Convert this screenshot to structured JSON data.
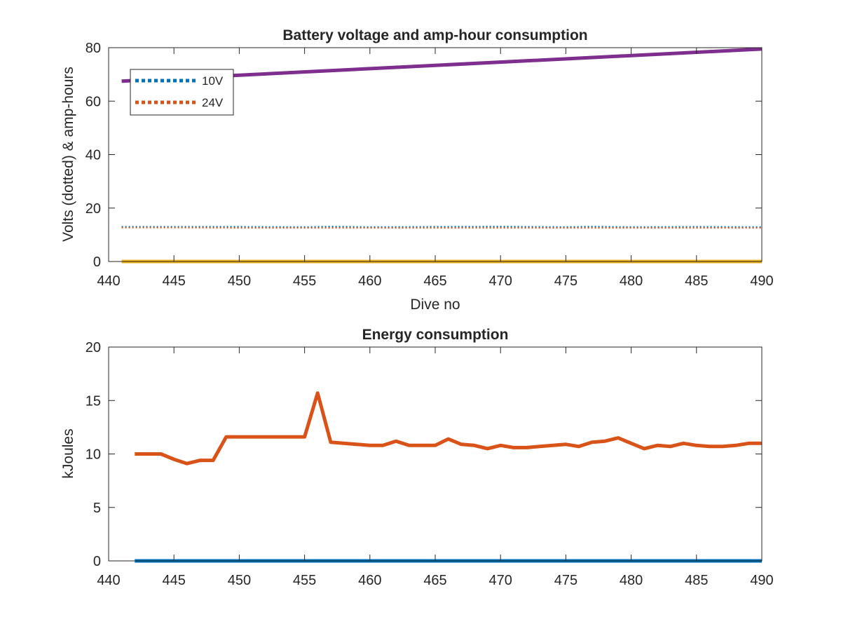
{
  "chart_data": [
    {
      "type": "line",
      "title": "Battery voltage and amp-hour consumption",
      "xlabel": "Dive no",
      "ylabel": "Volts (dotted) & amp-hours",
      "xlim": [
        440,
        490
      ],
      "ylim": [
        0,
        80
      ],
      "xticks": [
        440,
        445,
        450,
        455,
        460,
        465,
        470,
        475,
        480,
        485,
        490
      ],
      "yticks": [
        0,
        20,
        40,
        60,
        80
      ],
      "grid": false,
      "legend_position": "top-left",
      "series": [
        {
          "name": "10V",
          "style": "dotted",
          "color": "#0072BD",
          "x": [
            441,
            445,
            450,
            455,
            457,
            460,
            465,
            470,
            475,
            477,
            480,
            485,
            490
          ],
          "y": [
            13.0,
            13.0,
            13.0,
            12.9,
            13.1,
            12.9,
            13.0,
            13.1,
            12.9,
            13.1,
            12.9,
            13.0,
            12.9
          ]
        },
        {
          "name": "24V",
          "style": "dotted",
          "color": "#D95319",
          "x": [
            441,
            445,
            450,
            455,
            460,
            465,
            470,
            475,
            480,
            485,
            490
          ],
          "y": [
            12.7,
            12.7,
            12.6,
            12.6,
            12.6,
            12.6,
            12.6,
            12.6,
            12.6,
            12.6,
            12.6
          ]
        },
        {
          "style": "solid",
          "color": "#EDB120",
          "x": [
            441,
            490
          ],
          "y": [
            0,
            0
          ]
        },
        {
          "style": "solid",
          "color": "#7E2F8E",
          "x": [
            441,
            490
          ],
          "y": [
            67.5,
            79.5
          ]
        }
      ]
    },
    {
      "type": "line",
      "title": "Energy consumption",
      "xlabel": "",
      "ylabel": "kJoules",
      "xlim": [
        440,
        490
      ],
      "ylim": [
        0,
        20
      ],
      "xticks": [
        440,
        445,
        450,
        455,
        460,
        465,
        470,
        475,
        480,
        485,
        490
      ],
      "yticks": [
        0,
        5,
        10,
        15,
        20
      ],
      "grid": false,
      "series": [
        {
          "style": "solid",
          "color": "#0072BD",
          "x": [
            442,
            490
          ],
          "y": [
            0,
            0
          ]
        },
        {
          "style": "solid",
          "color": "#D95319",
          "x": [
            442,
            443,
            444,
            445,
            446,
            447,
            448,
            449,
            450,
            451,
            452,
            453,
            454,
            455,
            456,
            457,
            458,
            459,
            460,
            461,
            462,
            463,
            464,
            465,
            466,
            467,
            468,
            469,
            470,
            471,
            472,
            473,
            474,
            475,
            476,
            477,
            478,
            479,
            480,
            481,
            482,
            483,
            484,
            485,
            486,
            487,
            488,
            489,
            490
          ],
          "y": [
            10.0,
            10.0,
            10.0,
            9.5,
            9.1,
            9.4,
            9.4,
            11.6,
            11.6,
            11.6,
            11.6,
            11.6,
            11.6,
            11.6,
            15.7,
            11.1,
            11.0,
            10.9,
            10.8,
            10.8,
            11.2,
            10.8,
            10.8,
            10.8,
            11.4,
            10.9,
            10.8,
            10.5,
            10.8,
            10.6,
            10.6,
            10.7,
            10.8,
            10.9,
            10.7,
            11.1,
            11.2,
            11.5,
            11.0,
            10.5,
            10.8,
            10.7,
            11.0,
            10.8,
            10.7,
            10.7,
            10.8,
            11.0,
            11.0
          ]
        }
      ]
    }
  ]
}
